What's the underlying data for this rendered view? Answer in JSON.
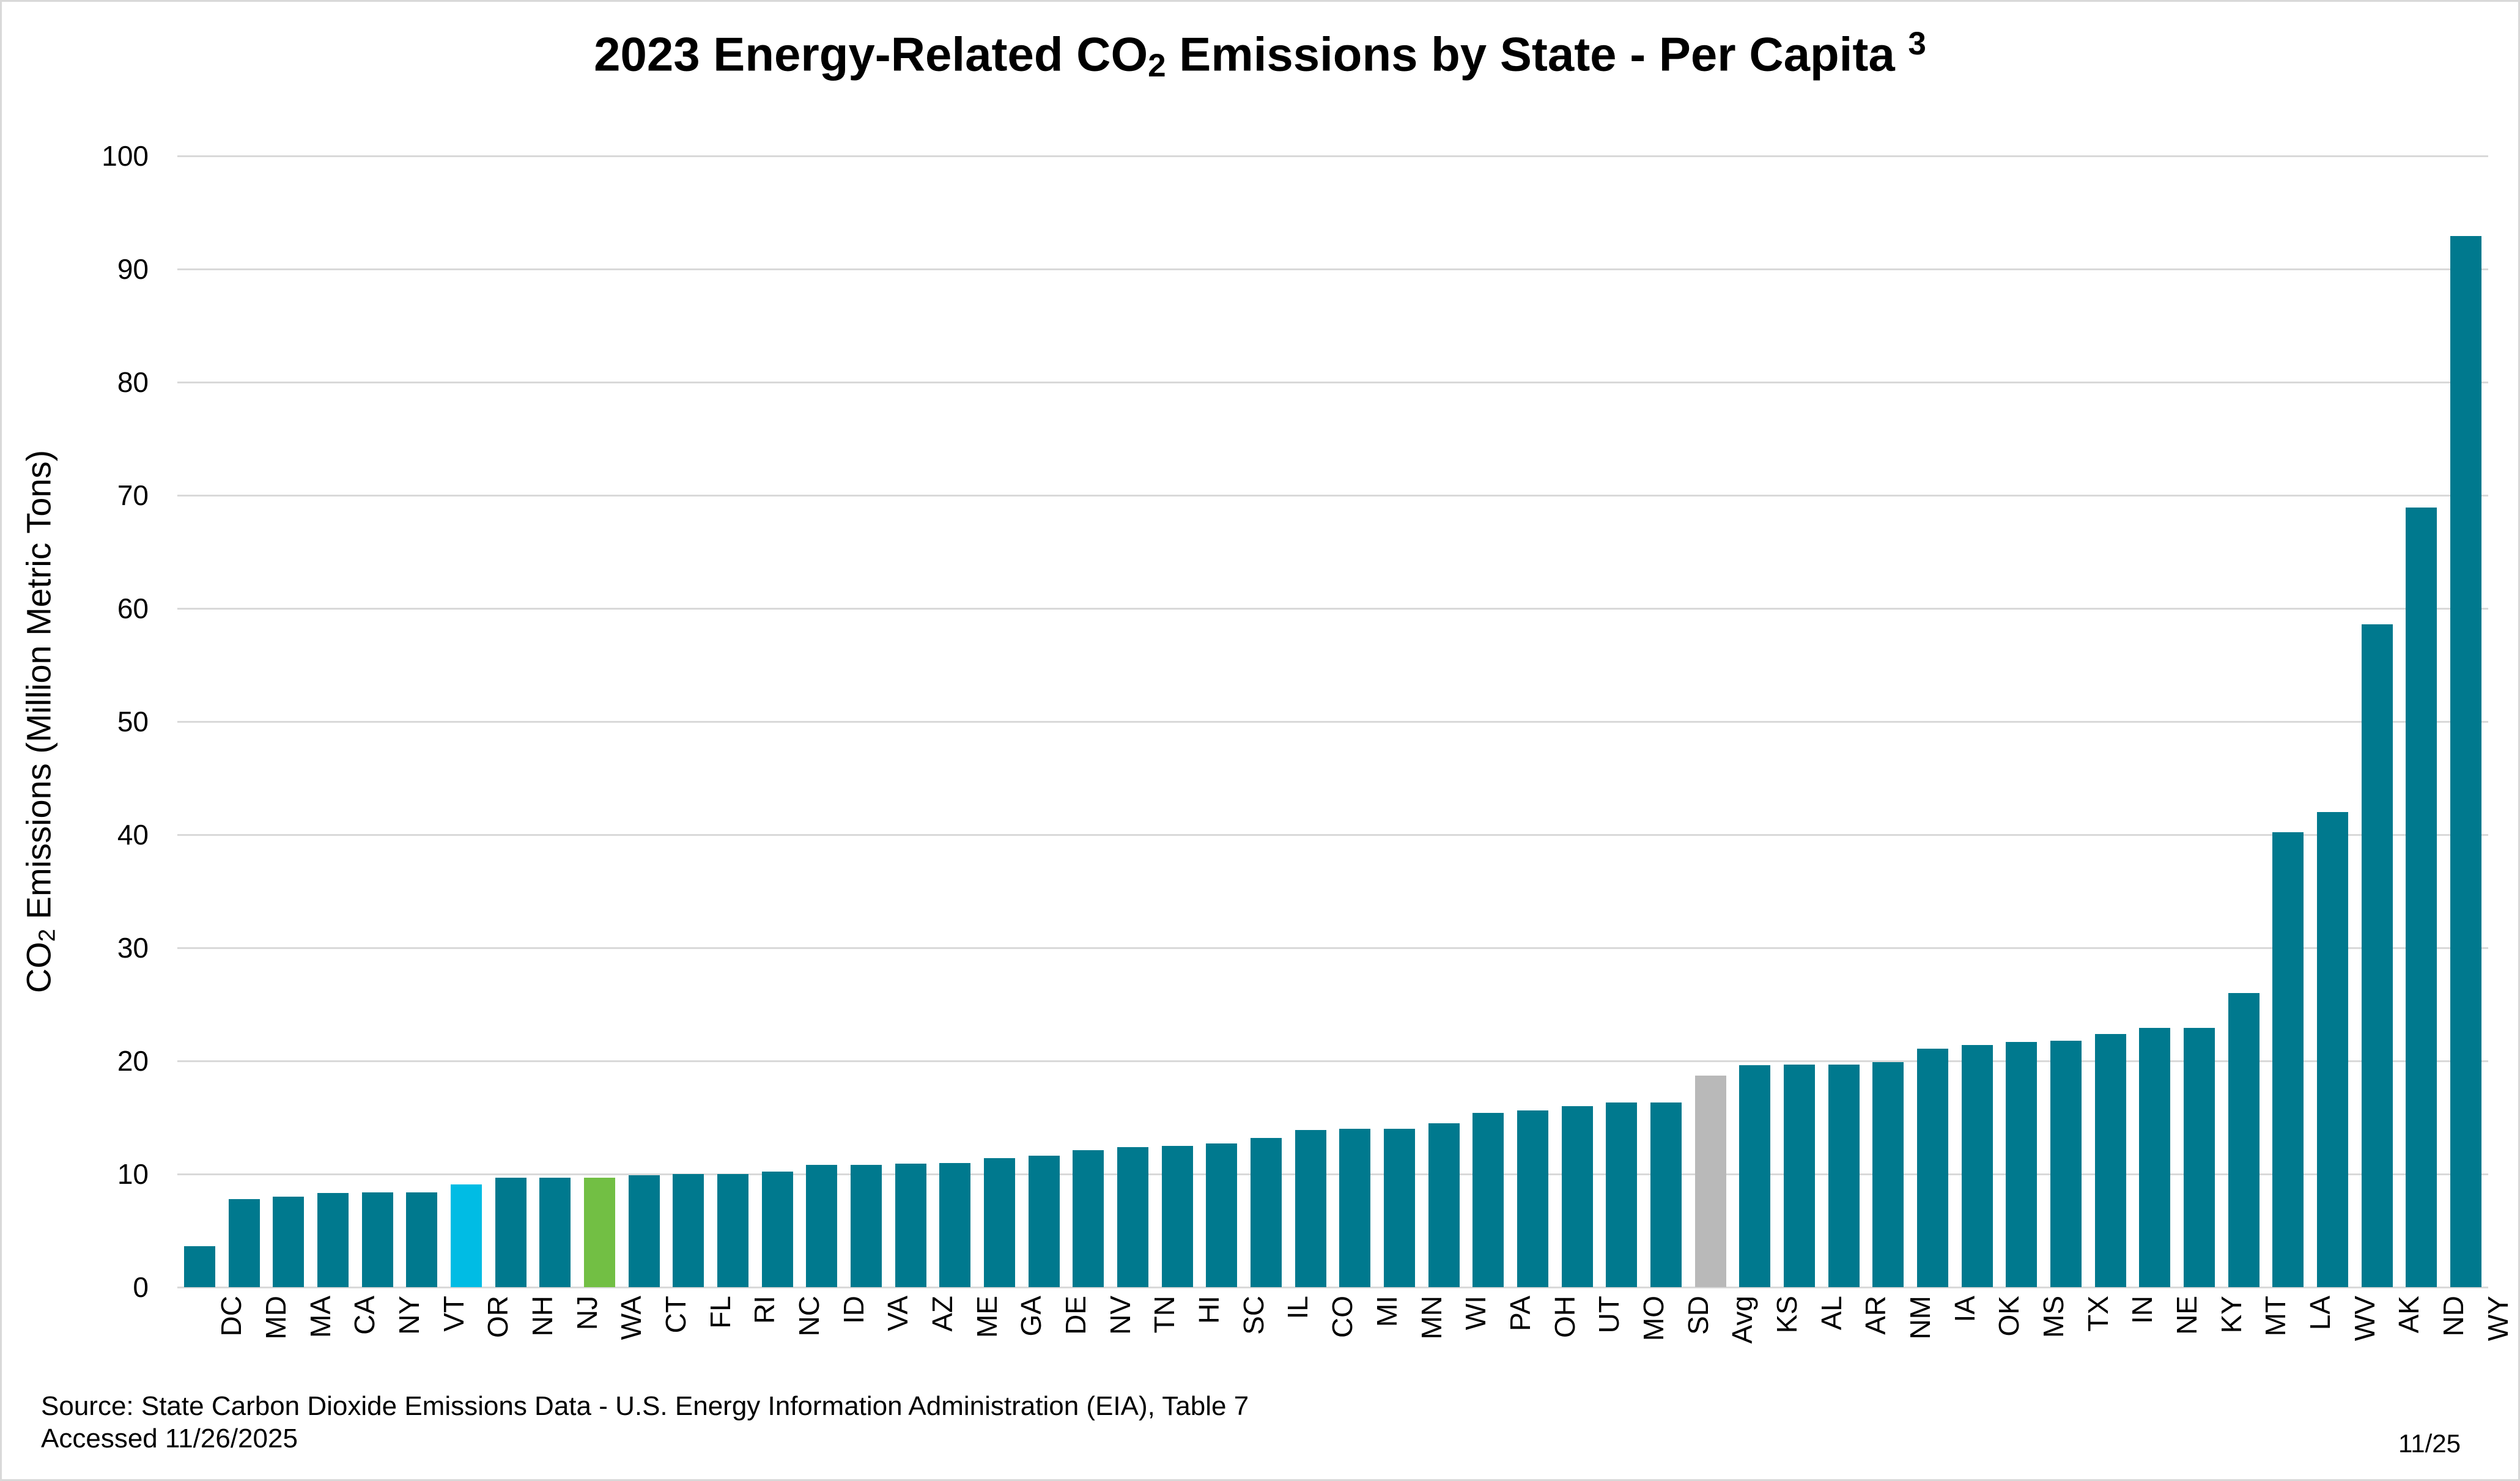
{
  "chart_data": {
    "type": "bar",
    "title": {
      "full_text": "2023 Energy-Related CO2 Emissions by State - Per Capita 3",
      "prefix": "2023 Energy-Related CO",
      "co_subscript": "2",
      "middle": " Emissions by State - Per Capita ",
      "superscript": "3"
    },
    "ylabel": {
      "full_text": "CO2 Emissions (Million Metric Tons)",
      "prefix": "CO",
      "co_subscript": "2",
      "rest": " Emissions (Million Metric Tons)"
    },
    "xlabel": "",
    "ylim": [
      0,
      100
    ],
    "y_ticks": [
      0,
      10,
      20,
      30,
      40,
      50,
      60,
      70,
      80,
      90,
      100
    ],
    "grid": "horizontal light-gray lines, no axis lines, no tick marks",
    "legend": "none",
    "categories": [
      "DC",
      "MD",
      "MA",
      "CA",
      "NY",
      "VT",
      "OR",
      "NH",
      "NJ",
      "WA",
      "CT",
      "FL",
      "RI",
      "NC",
      "ID",
      "VA",
      "AZ",
      "ME",
      "GA",
      "DE",
      "NV",
      "TN",
      "HI",
      "SC",
      "IL",
      "CO",
      "MI",
      "MN",
      "WI",
      "PA",
      "OH",
      "UT",
      "MO",
      "SD",
      "Avg",
      "KS",
      "AL",
      "AR",
      "NM",
      "IA",
      "OK",
      "MS",
      "TX",
      "IN",
      "NE",
      "KY",
      "MT",
      "LA",
      "WV",
      "AK",
      "ND",
      "WY"
    ],
    "values": [
      3.6,
      7.8,
      8.0,
      8.3,
      8.4,
      8.4,
      9.1,
      9.7,
      9.7,
      9.7,
      9.9,
      10.0,
      10.0,
      10.2,
      10.8,
      10.8,
      10.9,
      11.0,
      11.4,
      11.6,
      12.1,
      12.4,
      12.5,
      12.7,
      13.2,
      13.9,
      14.0,
      14.0,
      14.5,
      15.4,
      15.6,
      16.0,
      16.3,
      16.3,
      18.7,
      19.6,
      19.7,
      19.7,
      19.9,
      21.1,
      21.4,
      21.7,
      21.8,
      22.4,
      22.9,
      22.9,
      26.0,
      40.2,
      42.0,
      58.6,
      68.9,
      92.9
    ],
    "bar_colors": {
      "default": "#00798E",
      "OR": "#00BCE4",
      "WA": "#72BF44",
      "Avg": "#B9B9B9"
    },
    "highlighted_bars": {
      "OR": "cyan highlight",
      "WA": "green highlight",
      "Avg": "gray highlight"
    }
  },
  "source": {
    "line1": "Source: State Carbon Dioxide Emissions Data - U.S. Energy Information Administration (EIA), Table 7",
    "line2": "Accessed 11/26/2025"
  },
  "footer": {
    "date": "11/25"
  },
  "colors": {
    "background": "#FFFFFF",
    "text": "#000000",
    "gridline": "#D9D9D9",
    "canvas_border": "#D9D9D9"
  }
}
